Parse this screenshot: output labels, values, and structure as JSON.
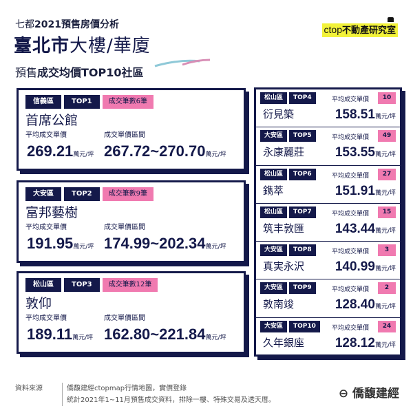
{
  "header": {
    "subtitle_prefix": "七都",
    "subtitle_bold": "2021",
    "subtitle_rest": "預售房價分析",
    "title_bold": "臺北市",
    "title_rest": "大樓/華廈",
    "sub2_prefix": "預售",
    "sub2_bold": "成交均價TOP10社區",
    "logo_ctop": "ctop",
    "logo_text": "不動產研究室"
  },
  "labels": {
    "avg": "平均成交單價",
    "range": "成交單價區間",
    "unit": "萬元/坪"
  },
  "top3": [
    {
      "district": "信義區",
      "rank": "TOP1",
      "count": "成交筆數6筆",
      "name": "首席公館",
      "avg": "269.21",
      "range": "267.72~270.70"
    },
    {
      "district": "大安區",
      "rank": "TOP2",
      "count": "成交筆數9筆",
      "name": "富邦藝樹",
      "avg": "191.95",
      "range": "174.99~202.34"
    },
    {
      "district": "松山區",
      "rank": "TOP3",
      "count": "成交筆數12筆",
      "name": "敦仰",
      "avg": "189.11",
      "range": "162.80~221.84"
    }
  ],
  "rest": [
    {
      "district": "松山區",
      "rank": "TOP4",
      "count": "10",
      "name": "衍見築",
      "avg": "158.51"
    },
    {
      "district": "大安區",
      "rank": "TOP5",
      "count": "49",
      "name": "永康麗莊",
      "avg": "153.55"
    },
    {
      "district": "松山區",
      "rank": "TOP6",
      "count": "27",
      "name": "鐫萃",
      "avg": "151.91"
    },
    {
      "district": "松山區",
      "rank": "TOP7",
      "count": "15",
      "name": "筑丰敦匯",
      "avg": "143.44"
    },
    {
      "district": "大安區",
      "rank": "TOP8",
      "count": "3",
      "name": "真実永沢",
      "avg": "140.99"
    },
    {
      "district": "大安區",
      "rank": "TOP9",
      "count": "2",
      "name": "敦南竣",
      "avg": "128.40"
    },
    {
      "district": "大安區",
      "rank": "TOP10",
      "count": "24",
      "name": "久年銀座",
      "avg": "128.12"
    }
  ],
  "footer": {
    "source_label": "資料來源",
    "line1": "僑馥建經ctopmap行情地圖，實價登錄",
    "line2": "統計2021年1~11月預售成交資料，排除一樓、特殊交易及透天厝。",
    "brand": "僑馥建經"
  }
}
